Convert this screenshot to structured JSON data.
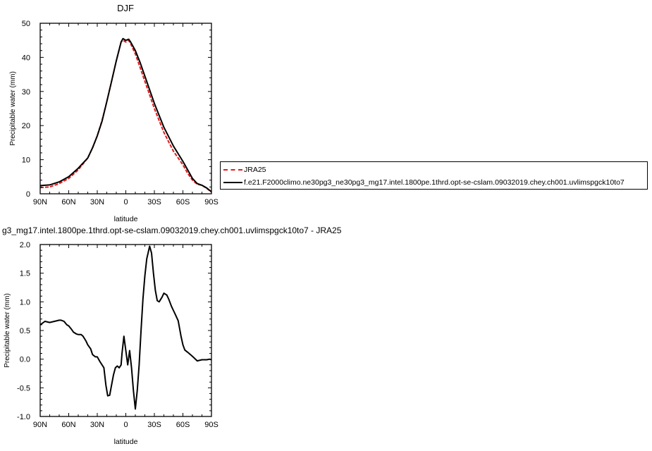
{
  "chart_data": [
    {
      "type": "line",
      "title": "DJF",
      "xlabel": "latitude",
      "ylabel": "Precipitable water (mm)",
      "xlim": [
        90,
        -90
      ],
      "ylim": [
        0,
        50
      ],
      "xticks": [
        90,
        60,
        30,
        0,
        -30,
        -60,
        -90
      ],
      "xtick_labels": [
        "90N",
        "60N",
        "30N",
        "0",
        "30S",
        "60S",
        "90S"
      ],
      "yticks": [
        0,
        10,
        20,
        30,
        40,
        50
      ],
      "ytick_labels": [
        "0",
        "10",
        "20",
        "30",
        "40",
        "50"
      ],
      "series": [
        {
          "name": "JRA25",
          "color": "#e41a1c",
          "dash": "dashed",
          "x": [
            90,
            80,
            70,
            60,
            50,
            40,
            35,
            30,
            25,
            20,
            15,
            10,
            5,
            3,
            0,
            -3,
            -5,
            -10,
            -15,
            -20,
            -25,
            -30,
            -40,
            -50,
            -60,
            -65,
            -70,
            -75,
            -80,
            -85,
            -90
          ],
          "y": [
            1.8,
            2.0,
            3.0,
            4.5,
            7.0,
            10.5,
            13.5,
            17.0,
            21.5,
            27.0,
            33.0,
            39.0,
            44.5,
            45.0,
            44.5,
            45.0,
            44.0,
            41.0,
            37.0,
            33.0,
            29.0,
            25.0,
            18.0,
            12.5,
            8.5,
            6.0,
            4.0,
            2.8,
            2.5,
            1.6,
            0.5
          ]
        },
        {
          "name": "f.e21.F2000climo.ne30pg3_ne30pg3_mg17.intel.1800pe.1thrd.opt-se-cslam.09032019.chey.ch001.uvlimspgck10to7",
          "color": "#000000",
          "dash": "solid",
          "x": [
            90,
            80,
            70,
            60,
            50,
            40,
            35,
            30,
            25,
            20,
            15,
            10,
            5,
            3,
            0,
            -3,
            -5,
            -10,
            -15,
            -20,
            -25,
            -30,
            -40,
            -50,
            -60,
            -65,
            -70,
            -75,
            -80,
            -85,
            -90
          ],
          "y": [
            2.4,
            2.6,
            3.5,
            5.0,
            7.5,
            10.5,
            13.5,
            17.0,
            21.3,
            27.0,
            33.0,
            39.0,
            44.5,
            45.5,
            45.0,
            45.3,
            44.5,
            42.0,
            38.5,
            34.5,
            30.5,
            26.5,
            19.5,
            14.0,
            9.5,
            7.0,
            4.5,
            3.0,
            2.5,
            1.7,
            0.6
          ]
        }
      ]
    },
    {
      "type": "line",
      "title": "g3_mg17.intel.1800pe.1thrd.opt-se-cslam.09032019.chey.ch001.uvlimspgck10to7 - JRA25",
      "xlabel": "latitude",
      "ylabel": "Precipitable water (mm)",
      "xlim": [
        90,
        -90
      ],
      "ylim": [
        -1.0,
        2.0
      ],
      "xticks": [
        90,
        60,
        30,
        0,
        -30,
        -60,
        -90
      ],
      "xtick_labels": [
        "90N",
        "60N",
        "30N",
        "0",
        "30S",
        "60S",
        "90S"
      ],
      "yticks": [
        -1.0,
        -0.5,
        0.0,
        0.5,
        1.0,
        1.5,
        2.0
      ],
      "ytick_labels": [
        "-1.0",
        "-0.5",
        "0.0",
        "0.5",
        "1.0",
        "1.5",
        "2.0"
      ],
      "series": [
        {
          "name": "",
          "color": "#000000",
          "dash": "solid",
          "x": [
            90,
            85,
            80,
            75,
            70,
            68,
            65,
            62,
            60,
            57,
            55,
            52,
            50,
            47,
            45,
            42,
            40,
            37,
            35,
            32,
            30,
            27,
            25,
            23,
            21,
            19,
            17,
            15,
            13,
            11,
            9,
            7,
            5,
            4,
            2,
            0,
            -2,
            -4,
            -6,
            -8,
            -10,
            -12,
            -14,
            -16,
            -18,
            -20,
            -22,
            -25,
            -27,
            -29,
            -31,
            -33,
            -35,
            -38,
            -40,
            -43,
            -45,
            -48,
            -50,
            -52,
            -55,
            -58,
            -60,
            -62,
            -65,
            -70,
            -75,
            -80,
            -85,
            -88,
            -90
          ],
          "y": [
            0.6,
            0.66,
            0.64,
            0.66,
            0.68,
            0.68,
            0.66,
            0.6,
            0.58,
            0.52,
            0.47,
            0.44,
            0.43,
            0.43,
            0.4,
            0.32,
            0.25,
            0.18,
            0.08,
            0.04,
            0.04,
            -0.05,
            -0.1,
            -0.15,
            -0.45,
            -0.64,
            -0.63,
            -0.45,
            -0.28,
            -0.15,
            -0.12,
            -0.15,
            -0.1,
            0.1,
            0.4,
            0.15,
            -0.1,
            0.15,
            -0.15,
            -0.55,
            -0.87,
            -0.55,
            -0.1,
            0.5,
            1.05,
            1.45,
            1.75,
            1.97,
            1.85,
            1.5,
            1.2,
            1.02,
            1.0,
            1.08,
            1.15,
            1.12,
            1.05,
            0.92,
            0.85,
            0.78,
            0.67,
            0.4,
            0.25,
            0.16,
            0.12,
            0.05,
            -0.03,
            -0.01,
            -0.01,
            0.0,
            -0.01
          ]
        }
      ]
    }
  ]
}
